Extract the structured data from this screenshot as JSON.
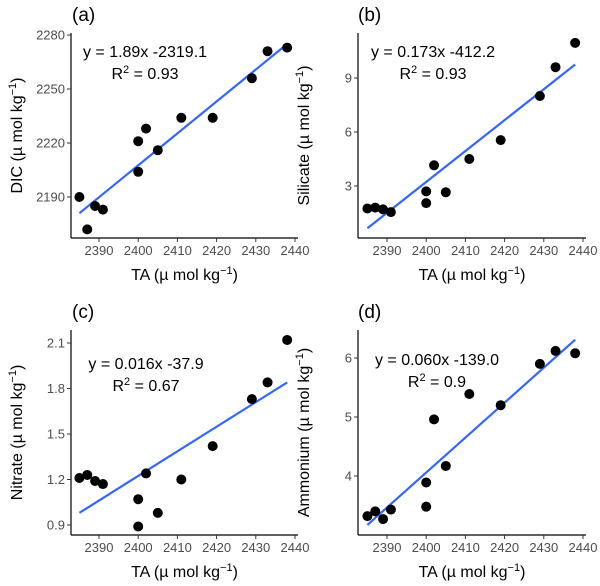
{
  "chart_data": [
    {
      "id": "a",
      "type": "scatter",
      "panel_label": "(a)",
      "xlabel": "TA (µ mol kg⁻¹)",
      "ylabel": "DIC (µ mol kg⁻¹)",
      "xlim": [
        2384,
        2440
      ],
      "ylim": [
        2167,
        2281
      ],
      "xticks": [
        2390,
        2400,
        2410,
        2420,
        2430,
        2440
      ],
      "yticks": [
        2190,
        2220,
        2250,
        2280
      ],
      "x": [
        2385,
        2387,
        2389,
        2391,
        2400,
        2400,
        2402,
        2405,
        2411,
        2419,
        2429,
        2433,
        2438
      ],
      "y": [
        2190,
        2172,
        2185,
        2183,
        2204,
        2221,
        2228,
        2216,
        2234,
        2234,
        2256,
        2271,
        2273
      ],
      "fit": {
        "slope": 1.89,
        "intercept": -2319.1,
        "x_range": [
          2385,
          2438
        ]
      },
      "equation": "y = 1.89x -2319.1",
      "r2_label": "R",
      "r2_value": " = 0.93",
      "legend": "none",
      "grid": false
    },
    {
      "id": "b",
      "type": "scatter",
      "panel_label": "(b)",
      "xlabel": "TA (µ mol kg⁻¹)",
      "ylabel": "Silicate (µ mol kg⁻¹)",
      "xlim": [
        2384,
        2440
      ],
      "ylim": [
        0,
        11.3
      ],
      "xticks": [
        2390,
        2400,
        2410,
        2420,
        2430,
        2440
      ],
      "yticks": [
        3,
        6,
        9
      ],
      "x": [
        2385,
        2387,
        2389,
        2391,
        2400,
        2400,
        2402,
        2405,
        2411,
        2419,
        2429,
        2433,
        2438
      ],
      "y": [
        1.75,
        1.8,
        1.7,
        1.55,
        2.05,
        2.7,
        4.15,
        2.65,
        4.5,
        5.55,
        8.0,
        9.6,
        10.95
      ],
      "fit": {
        "slope": 0.173,
        "intercept": -412.2,
        "x_range": [
          2385,
          2438
        ]
      },
      "equation": "y = 0.173x -412.2",
      "r2_label": "R",
      "r2_value": " = 0.93",
      "legend": "none",
      "grid": false
    },
    {
      "id": "c",
      "type": "scatter",
      "panel_label": "(c)",
      "xlabel": "TA (µ mol kg⁻¹)",
      "ylabel": "Nitrate (µ mol kg⁻¹)",
      "xlim": [
        2384,
        2440
      ],
      "ylim": [
        0.835,
        2.18
      ],
      "xticks": [
        2390,
        2400,
        2410,
        2420,
        2430,
        2440
      ],
      "yticks": [
        0.9,
        1.2,
        1.5,
        1.8,
        2.1
      ],
      "x": [
        2385,
        2387,
        2389,
        2391,
        2400,
        2400,
        2402,
        2405,
        2411,
        2419,
        2429,
        2433,
        2438
      ],
      "y": [
        1.21,
        1.23,
        1.19,
        1.17,
        1.07,
        0.89,
        1.24,
        0.98,
        1.2,
        1.42,
        1.73,
        1.84,
        2.12
      ],
      "fit": {
        "slope": 0.016,
        "intercept": -37.9,
        "x_range": [
          2385,
          2438
        ],
        "y_range": [
          0.98,
          1.84
        ]
      },
      "equation": "y = 0.016x -37.9",
      "r2_label": "R",
      "r2_value": " = 0.67",
      "legend": "none",
      "grid": false
    },
    {
      "id": "d",
      "type": "scatter",
      "panel_label": "(d)",
      "xlabel": "TA (µ mol kg⁻¹)",
      "ylabel": "Ammonium (µ mol kg⁻¹)",
      "xlim": [
        2384,
        2440
      ],
      "ylim": [
        3.03,
        6.5
      ],
      "xticks": [
        2390,
        2400,
        2410,
        2420,
        2430,
        2440
      ],
      "yticks": [
        4,
        5,
        6
      ],
      "x": [
        2385,
        2387,
        2389,
        2391,
        2400,
        2400,
        2402,
        2405,
        2411,
        2419,
        2429,
        2433,
        2438
      ],
      "y": [
        3.32,
        3.4,
        3.27,
        3.43,
        3.48,
        3.89,
        4.96,
        4.17,
        5.39,
        5.2,
        5.9,
        6.12,
        6.08
      ],
      "fit": {
        "slope": 0.06,
        "intercept": -139.0,
        "x_range": [
          2385,
          2438
        ],
        "y_range": [
          3.17,
          6.31
        ]
      },
      "equation": "y = 0.060x -139.0",
      "r2_label": "R",
      "r2_value": " = 0.9",
      "legend": "none",
      "grid": false
    }
  ],
  "colors": {
    "points": "#000000",
    "fit_line": "#3366ff",
    "axis": "#000000",
    "tick_label": "#4d4d4d"
  }
}
